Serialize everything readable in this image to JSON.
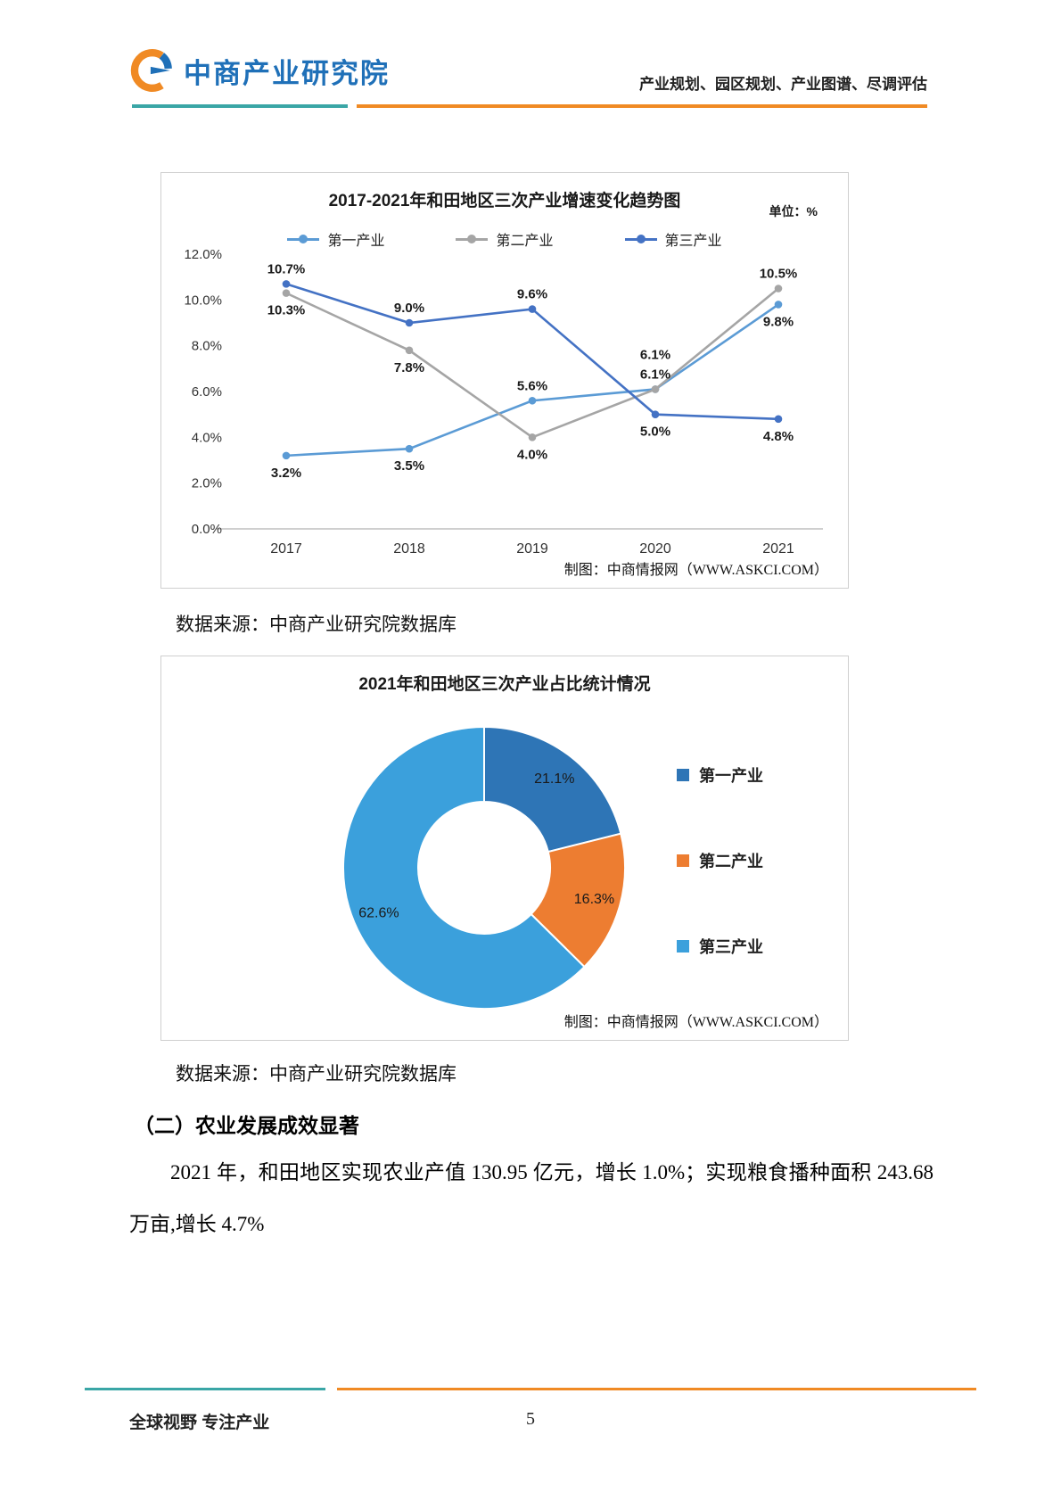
{
  "header": {
    "logo_text": "中商产业研究院",
    "tagline": "产业规划、园区规划、产业图谱、尽调评估"
  },
  "source_note_1": "数据来源：中商产业研究院数据库",
  "source_note_2": "数据来源：中商产业研究院数据库",
  "section_heading": "（二）农业发展成效显著",
  "paragraph": "2021 年，和田地区实现农业产值 130.95 亿元，增长 1.0%；实现粮食播种面积 243.68 万亩,增长 4.7%",
  "footer": {
    "slogan": "全球视野 专注产业",
    "page_number": "5"
  },
  "chart_data": [
    {
      "type": "line",
      "title": "2017-2021年和田地区三次产业增速变化趋势图",
      "unit_label": "单位：%",
      "categories": [
        "2017",
        "2018",
        "2019",
        "2020",
        "2021"
      ],
      "series": [
        {
          "name": "第一产业",
          "color": "#5B9BD5",
          "values": [
            3.2,
            3.5,
            5.6,
            6.1,
            9.8
          ],
          "label_pos": [
            "below",
            "below",
            "above",
            "above-far",
            "below"
          ]
        },
        {
          "name": "第二产业",
          "color": "#A5A5A5",
          "values": [
            10.3,
            7.8,
            4.0,
            6.1,
            10.5
          ],
          "label_pos": [
            "below",
            "below",
            "below",
            "above",
            "above"
          ]
        },
        {
          "name": "第三产业",
          "color": "#4472C4",
          "values": [
            10.7,
            9.0,
            9.6,
            5.0,
            4.8
          ],
          "label_pos": [
            "above",
            "above",
            "above",
            "below",
            "below"
          ]
        }
      ],
      "ylim": [
        0,
        12
      ],
      "ytick_step": 2,
      "ytick_format_suffix": "%",
      "grid": false,
      "legend_position": "top",
      "credit": "制图：中商情报网（WWW.ASKCI.COM）"
    },
    {
      "type": "pie",
      "donut": true,
      "title": "2021年和田地区三次产业占比统计情况",
      "slices": [
        {
          "name": "第一产业",
          "value": 21.1,
          "color": "#2E75B6"
        },
        {
          "name": "第二产业",
          "value": 16.3,
          "color": "#ED7D31"
        },
        {
          "name": "第三产业",
          "value": 62.6,
          "color": "#3BA0DC"
        }
      ],
      "legend_position": "right",
      "credit": "制图：中商情报网（WWW.ASKCI.COM）"
    }
  ]
}
